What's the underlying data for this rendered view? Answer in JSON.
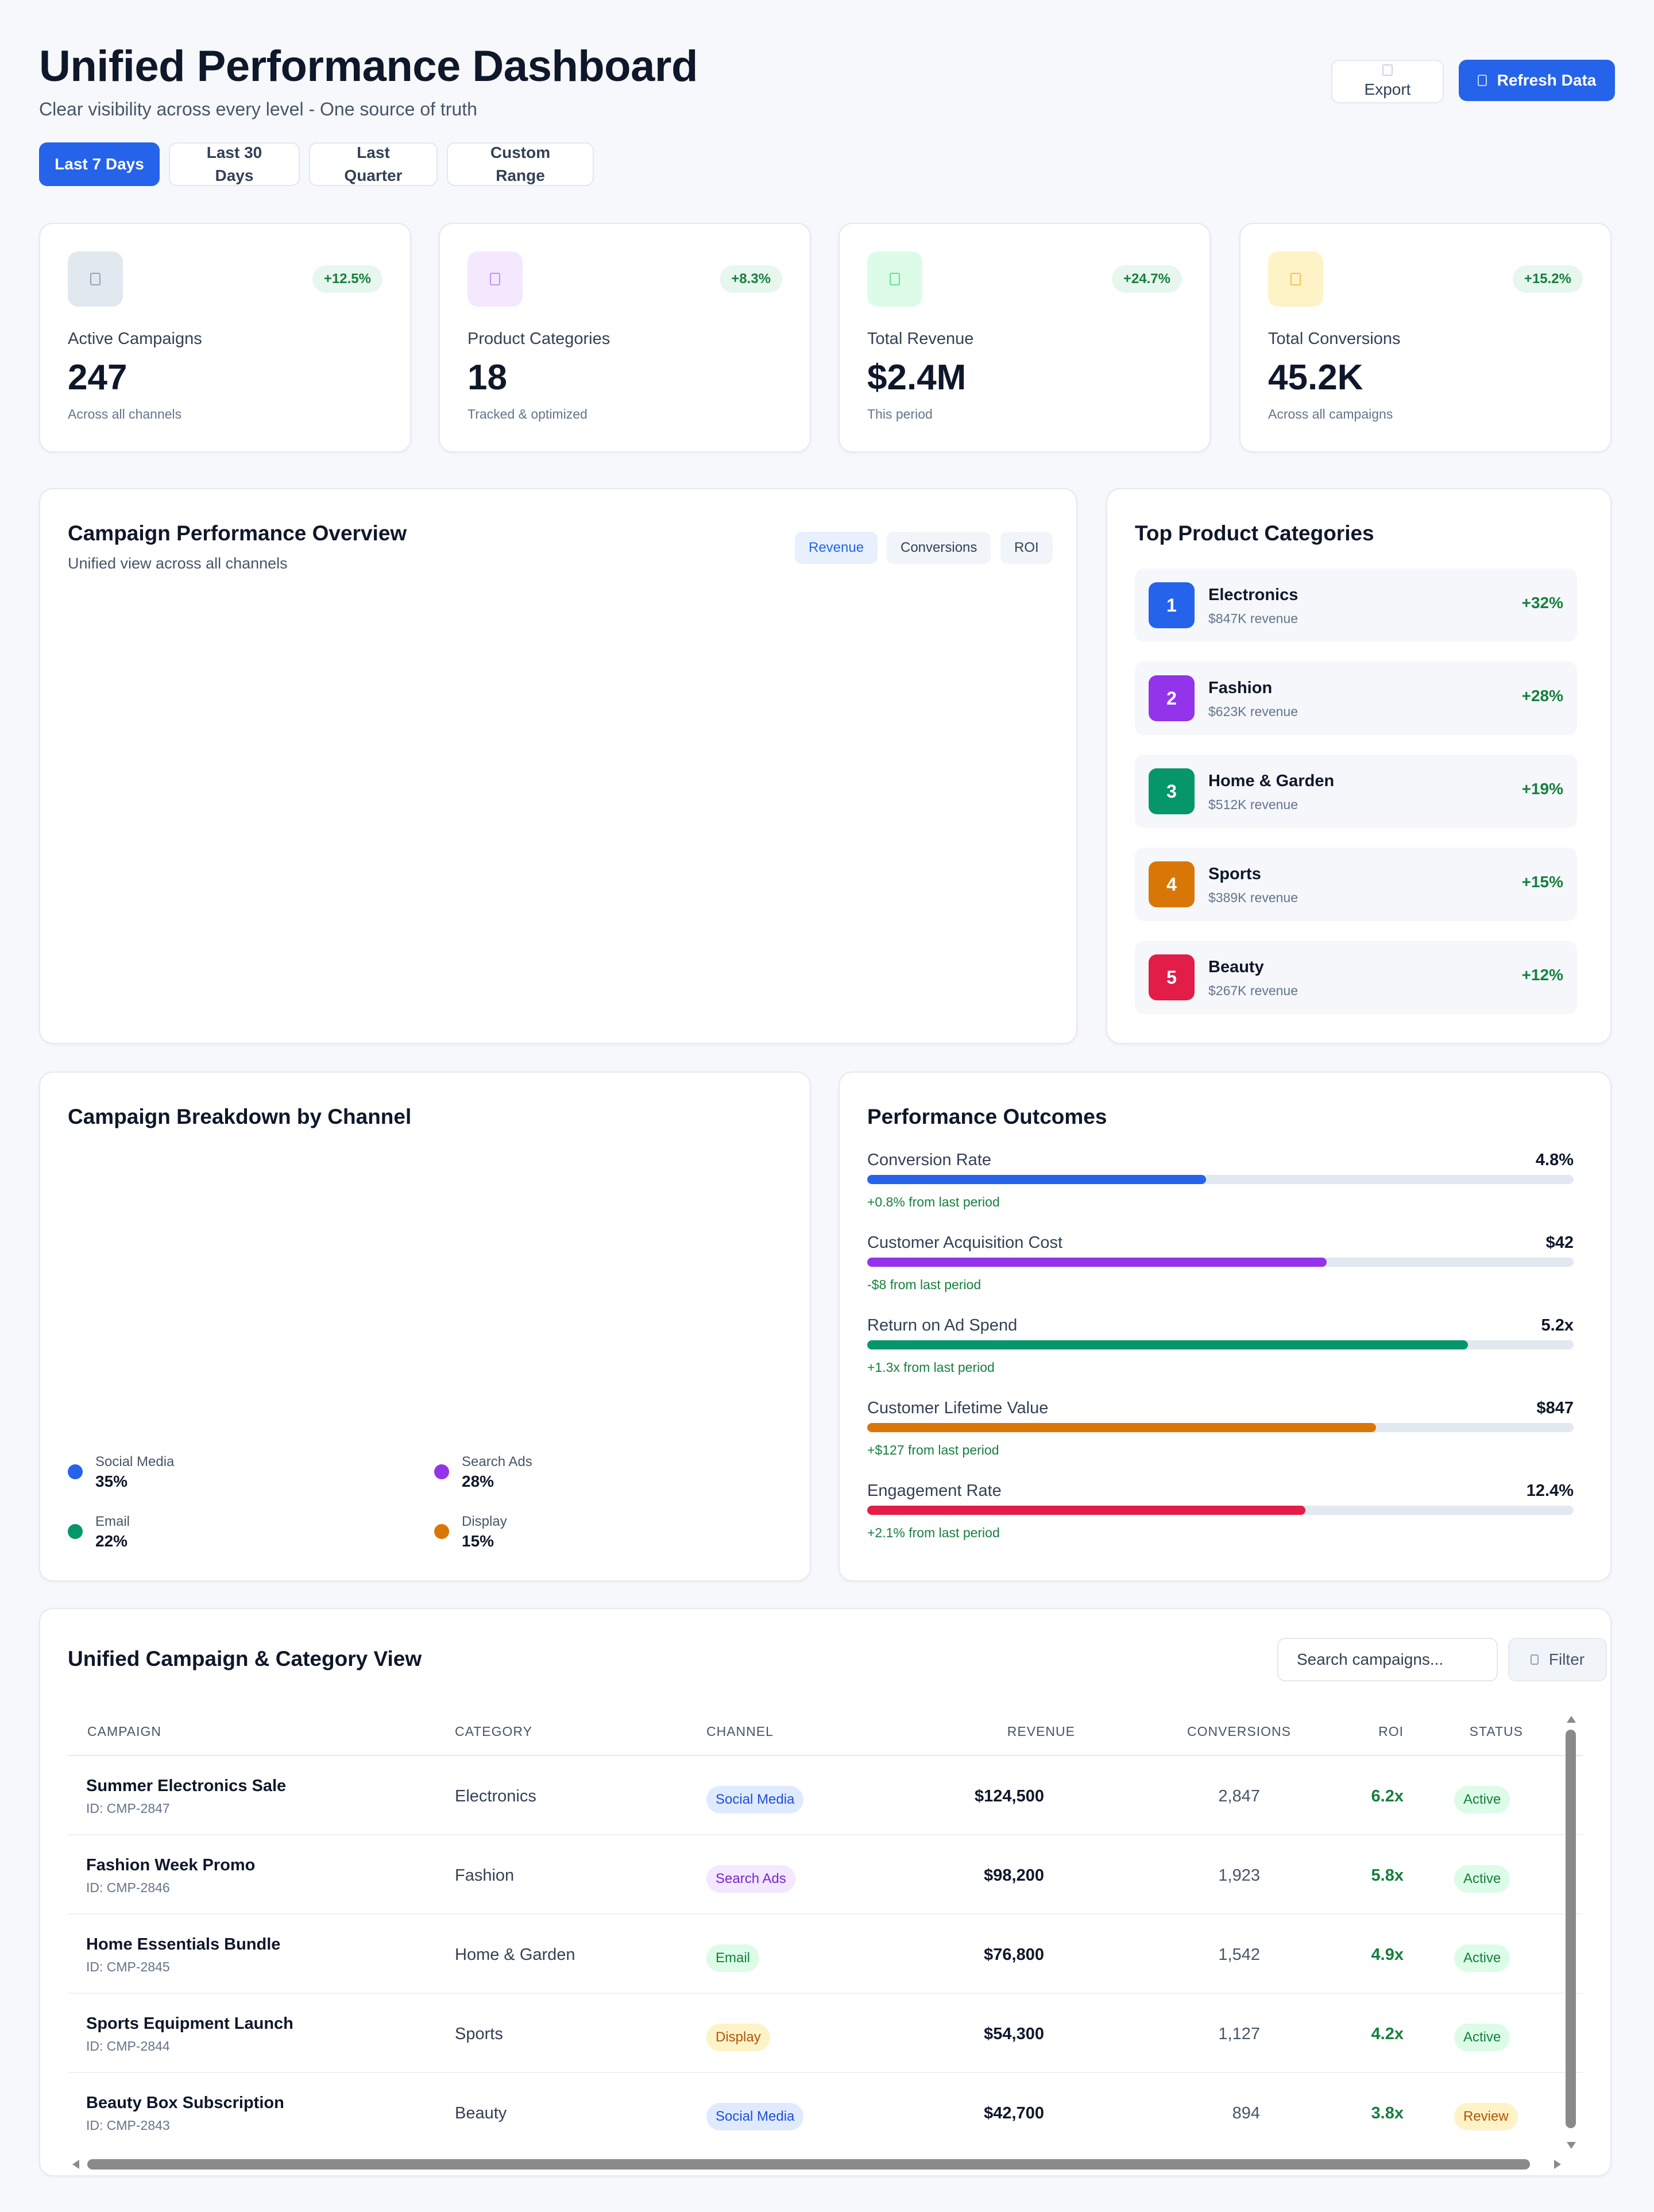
{
  "header": {
    "title": "Unified Performance Dashboard",
    "subtitle": "Clear visibility across every level - One source of truth",
    "export_label": "Export",
    "refresh_label": "Refresh Data"
  },
  "date_ranges": [
    {
      "label": "Last 7 Days",
      "active": true
    },
    {
      "label": "Last 30 Days",
      "active": false
    },
    {
      "label": "Last Quarter",
      "active": false
    },
    {
      "label": "Custom Range",
      "active": false
    }
  ],
  "kpis": [
    {
      "label": "Active Campaigns",
      "value": "247",
      "sub": "Across all channels",
      "change": "+12.5%",
      "icon": "campaign-icon",
      "icon_bg": "#e2e8f0",
      "icon_color": "#64748b"
    },
    {
      "label": "Product Categories",
      "value": "18",
      "sub": "Tracked & optimized",
      "change": "+8.3%",
      "icon": "category-icon",
      "icon_bg": "#f3e8ff",
      "icon_color": "#a855f7"
    },
    {
      "label": "Total Revenue",
      "value": "$2.4M",
      "sub": "This period",
      "change": "+24.7%",
      "icon": "revenue-icon",
      "icon_bg": "#dcfce7",
      "icon_color": "#22c55e"
    },
    {
      "label": "Total Conversions",
      "value": "45.2K",
      "sub": "Across all campaigns",
      "change": "+15.2%",
      "icon": "conversion-icon",
      "icon_bg": "#fef3c7",
      "icon_color": "#f59e0b"
    }
  ],
  "overview": {
    "title": "Campaign Performance Overview",
    "subtitle": "Unified view across all channels",
    "chips": [
      {
        "label": "Revenue",
        "active": true
      },
      {
        "label": "Conversions",
        "active": false
      },
      {
        "label": "ROI",
        "active": false
      }
    ]
  },
  "top_categories": {
    "title": "Top Product Categories",
    "items": [
      {
        "rank": "1",
        "name": "Electronics",
        "revenue": "$847K revenue",
        "growth": "+32%",
        "color": "#2563eb"
      },
      {
        "rank": "2",
        "name": "Fashion",
        "revenue": "$623K revenue",
        "growth": "+28%",
        "color": "#9333ea"
      },
      {
        "rank": "3",
        "name": "Home & Garden",
        "revenue": "$512K revenue",
        "growth": "+19%",
        "color": "#059669"
      },
      {
        "rank": "4",
        "name": "Sports",
        "revenue": "$389K revenue",
        "growth": "+15%",
        "color": "#d97706"
      },
      {
        "rank": "5",
        "name": "Beauty",
        "revenue": "$267K revenue",
        "growth": "+12%",
        "color": "#e11d48"
      }
    ]
  },
  "breakdown": {
    "title": "Campaign Breakdown by Channel",
    "legend": [
      {
        "name": "Social Media",
        "value": "35%",
        "color": "#2563eb"
      },
      {
        "name": "Search Ads",
        "value": "28%",
        "color": "#9333ea"
      },
      {
        "name": "Email",
        "value": "22%",
        "color": "#059669"
      },
      {
        "name": "Display",
        "value": "15%",
        "color": "#d97706"
      }
    ]
  },
  "outcomes": {
    "title": "Performance Outcomes",
    "metrics": [
      {
        "label": "Conversion Rate",
        "value": "4.8%",
        "change": "+0.8% from last period",
        "fill": 0.48,
        "color": "#2563eb"
      },
      {
        "label": "Customer Acquisition Cost",
        "value": "$42",
        "change": "-$8 from last period",
        "fill": 0.65,
        "color": "#9333ea"
      },
      {
        "label": "Return on Ad Spend",
        "value": "5.2x",
        "change": "+1.3x from last period",
        "fill": 0.85,
        "color": "#059669"
      },
      {
        "label": "Customer Lifetime Value",
        "value": "$847",
        "change": "+$127 from last period",
        "fill": 0.72,
        "color": "#d97706"
      },
      {
        "label": "Engagement Rate",
        "value": "12.4%",
        "change": "+2.1% from last period",
        "fill": 0.62,
        "color": "#e11d48"
      }
    ]
  },
  "table": {
    "title": "Unified Campaign & Category View",
    "search_placeholder": "Search campaigns...",
    "filter_label": "Filter",
    "columns": [
      "CAMPAIGN",
      "CATEGORY",
      "CHANNEL",
      "REVENUE",
      "CONVERSIONS",
      "ROI",
      "STATUS"
    ],
    "rows": [
      {
        "name": "Summer Electronics Sale",
        "id": "ID: CMP-2847",
        "category": "Electronics",
        "channel": "Social Media",
        "revenue": "$124,500",
        "conversions": "2,847",
        "roi": "6.2x",
        "status": "Active"
      },
      {
        "name": "Fashion Week Promo",
        "id": "ID: CMP-2846",
        "category": "Fashion",
        "channel": "Search Ads",
        "revenue": "$98,200",
        "conversions": "1,923",
        "roi": "5.8x",
        "status": "Active"
      },
      {
        "name": "Home Essentials Bundle",
        "id": "ID: CMP-2845",
        "category": "Home & Garden",
        "channel": "Email",
        "revenue": "$76,800",
        "conversions": "1,542",
        "roi": "4.9x",
        "status": "Active"
      },
      {
        "name": "Sports Equipment Launch",
        "id": "ID: CMP-2844",
        "category": "Sports",
        "channel": "Display",
        "revenue": "$54,300",
        "conversions": "1,127",
        "roi": "4.2x",
        "status": "Active"
      },
      {
        "name": "Beauty Box Subscription",
        "id": "ID: CMP-2843",
        "category": "Beauty",
        "channel": "Social Media",
        "revenue": "$42,700",
        "conversions": "894",
        "roi": "3.8x",
        "status": "Review"
      }
    ]
  },
  "colors": {
    "accent": "#2563eb",
    "positive": "#15803d",
    "channel_social": "#e0eaff",
    "channel_search": "#f3e8ff",
    "channel_email": "#dcfce7",
    "channel_display": "#fef3c7",
    "status_active": "#dcfce7",
    "status_review": "#fef3c7"
  }
}
